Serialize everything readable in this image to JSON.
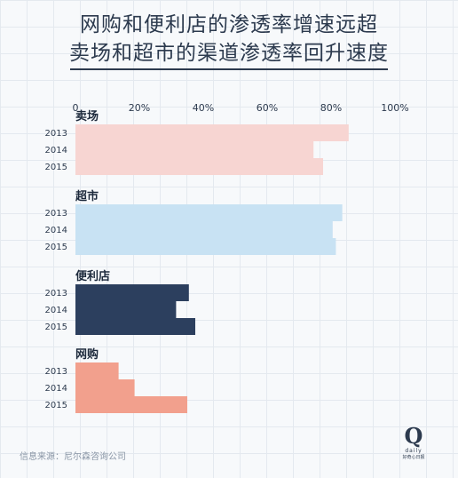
{
  "title_line1": "网购和便利店的渗透率增速远超",
  "title_line2": "卖场和超市的渠道渗透率回升速度",
  "source": "信息来源：尼尔森咨询公司",
  "logo": {
    "mark": "Q",
    "word": "daily",
    "sub": "好奇心日报"
  },
  "chart_data": {
    "type": "bar",
    "orientation": "horizontal",
    "x_ticks": [
      "0",
      "20%",
      "40%",
      "60%",
      "80%",
      "100%"
    ],
    "xlim": [
      0,
      100
    ],
    "grid": true,
    "groups": [
      {
        "name": "卖场",
        "color": "#f7d5d2",
        "years": [
          "2013",
          "2014",
          "2015"
        ],
        "values": [
          85.5,
          74.5,
          77.5
        ]
      },
      {
        "name": "超市",
        "color": "#c8e2f3",
        "years": [
          "2013",
          "2014",
          "2015"
        ],
        "values": [
          83.5,
          80.5,
          81.5
        ]
      },
      {
        "name": "便利店",
        "color": "#2c3f5e",
        "years": [
          "2013",
          "2014",
          "2015"
        ],
        "values": [
          35.5,
          31.5,
          37.5
        ]
      },
      {
        "name": "网购",
        "color": "#f2a08d",
        "years": [
          "2013",
          "2014",
          "2015"
        ],
        "values": [
          13.5,
          18.5,
          35.0
        ]
      }
    ]
  }
}
